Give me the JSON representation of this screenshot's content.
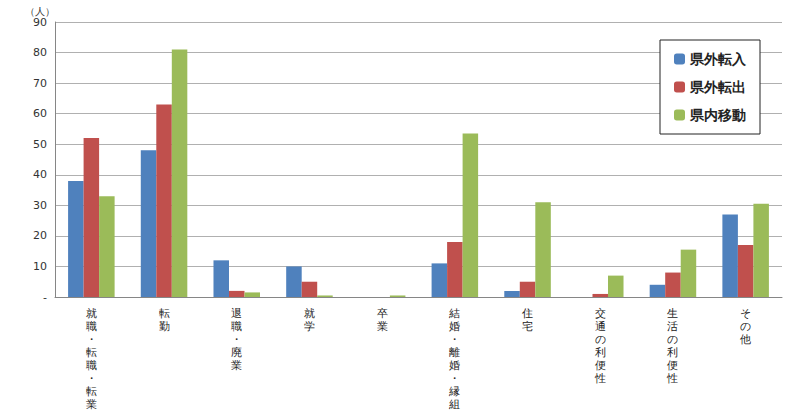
{
  "chart_data": {
    "type": "bar",
    "y_label": "（人）",
    "categories": [
      "就職・転職・転業",
      "転勤",
      "退職・廃業",
      "就学",
      "卒業",
      "結婚・離婚・縁組",
      "住宅",
      "交通の利便性",
      "生活の利便性",
      "その他"
    ],
    "series": [
      {
        "name": "県外転入",
        "color": "#4f81bd",
        "values": [
          38,
          48,
          12,
          10,
          0,
          11,
          2,
          0,
          4,
          27
        ]
      },
      {
        "name": "県外転出",
        "color": "#c0504d",
        "values": [
          52,
          63,
          2,
          5,
          0,
          18,
          5,
          1,
          8,
          17
        ]
      },
      {
        "name": "県内移動",
        "color": "#9bbb59",
        "values": [
          33,
          81,
          1.5,
          0.5,
          0.5,
          53.5,
          31,
          7,
          15.5,
          30.5
        ]
      }
    ],
    "ylim": [
      0,
      90
    ],
    "yticks": [
      {
        "value": 0,
        "label": "-"
      },
      10,
      20,
      30,
      40,
      50,
      60,
      70,
      80,
      90
    ],
    "grid": true,
    "legend": "upper right"
  }
}
